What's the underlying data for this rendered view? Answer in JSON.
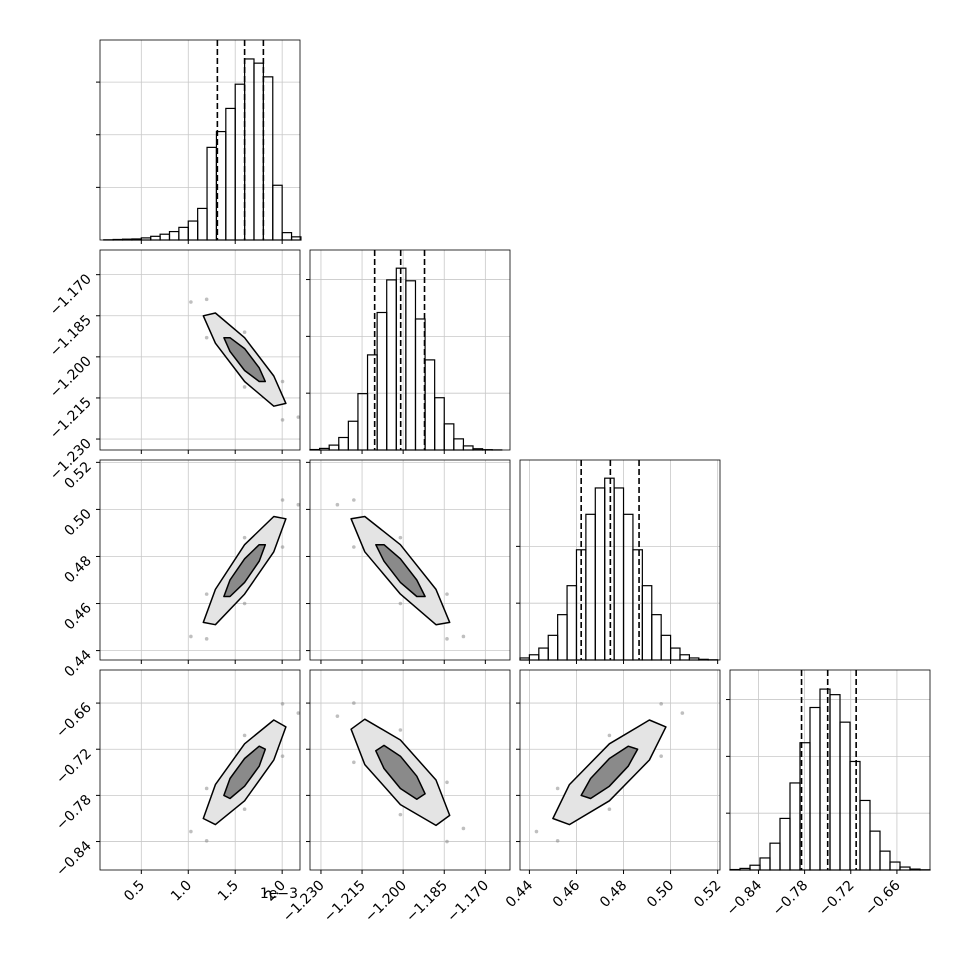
{
  "chart_data": {
    "type": "corner",
    "grid": true,
    "color": "#000000",
    "point_color": "#808080",
    "params": [
      {
        "lim": [
          0.06,
          2.19
        ],
        "ticks": [
          0.5,
          {
            "value": 1,
            "label": "1.0"
          },
          1.5,
          {
            "value": 2,
            "label": "2.0"
          }
        ],
        "offset_label": "1e−3",
        "quantiles": [
          1.31,
          1.6,
          1.8
        ],
        "hist": {
          "bins": [
            0.1,
            0.2,
            0.3,
            0.4,
            0.5,
            0.6,
            0.7,
            0.8,
            0.9,
            1.0,
            1.1,
            1.2,
            1.3,
            1.4,
            1.5,
            1.6,
            1.7,
            1.8,
            1.9,
            2.0,
            2.1,
            2.2
          ],
          "counts": [
            2,
            5,
            8,
            10,
            20,
            35,
            55,
            80,
            120,
            180,
            300,
            880,
            1030,
            1250,
            1480,
            1720,
            1680,
            1550,
            520,
            70,
            30
          ],
          "ylim": [
            0,
            1900
          ],
          "yticks": [
            500,
            1000,
            1500
          ]
        }
      },
      {
        "lim": [
          -1.234,
          -1.161
        ],
        "ticks": [
          {
            "value": -1.23,
            "label": "−1.230"
          },
          {
            "value": -1.215,
            "label": "−1.215"
          },
          {
            "value": -1.2,
            "label": "−1.200"
          },
          {
            "value": -1.185,
            "label": "−1.185"
          },
          {
            "value": -1.17,
            "label": "−1.170"
          }
        ],
        "quantiles": [
          -1.2104,
          -1.2009,
          -1.1922
        ],
        "hist": {
          "bins": [
            -1.234,
            -1.2305,
            -1.227,
            -1.2235,
            -1.22,
            -1.2165,
            -1.213,
            -1.2095,
            -1.206,
            -1.2025,
            -1.199,
            -1.1955,
            -1.192,
            -1.1885,
            -1.185,
            -1.1815,
            -1.178,
            -1.1745,
            -1.171,
            -1.1675,
            -1.164
          ],
          "counts": [
            4,
            14,
            43,
            110,
            253,
            496,
            837,
            1210,
            1497,
            1600,
            1489,
            1153,
            793,
            460,
            230,
            98,
            36,
            11,
            3,
            1
          ],
          "ylim": [
            0,
            1760
          ],
          "yticks": [
            500,
            1000,
            1500
          ]
        }
      },
      {
        "lim": [
          0.436,
          0.521
        ],
        "ticks": [
          0.44,
          0.46,
          0.48,
          {
            "value": 0.5,
            "label": "0.50"
          },
          0.52
        ],
        "quantiles": [
          0.462,
          0.4744,
          0.4866
        ],
        "hist": {
          "bins": [
            0.436,
            0.44,
            0.444,
            0.448,
            0.452,
            0.456,
            0.46,
            0.464,
            0.468,
            0.472,
            0.476,
            0.48,
            0.484,
            0.488,
            0.492,
            0.496,
            0.5,
            0.504,
            0.508,
            0.512,
            0.516,
            0.52
          ],
          "counts": [
            18,
            46,
            105,
            217,
            399,
            654,
            970,
            1282,
            1514,
            1600,
            1514,
            1282,
            970,
            654,
            399,
            217,
            105,
            46,
            18,
            6,
            2
          ],
          "ylim": [
            0,
            1760
          ],
          "yticks": [
            500,
            1000
          ]
        }
      },
      {
        "lim": [
          -0.877,
          -0.617
        ],
        "ticks": [
          {
            "value": -0.84,
            "label": "−0.84"
          },
          {
            "value": -0.78,
            "label": "−0.78"
          },
          {
            "value": -0.72,
            "label": "−0.72"
          },
          {
            "value": -0.66,
            "label": "−0.66"
          }
        ],
        "quantiles": [
          -0.784,
          -0.75,
          -0.713
        ],
        "hist": {
          "bins": [
            -0.877,
            -0.864,
            -0.851,
            -0.838,
            -0.825,
            -0.812,
            -0.799,
            -0.786,
            -0.773,
            -0.76,
            -0.747,
            -0.734,
            -0.721,
            -0.708,
            -0.695,
            -0.682,
            -0.669,
            -0.656,
            -0.643,
            -0.63,
            -0.617
          ],
          "counts": [
            4,
            14,
            42,
            106,
            236,
            454,
            766,
            1120,
            1430,
            1592,
            1543,
            1301,
            955,
            612,
            342,
            166,
            70,
            26,
            8,
            2
          ],
          "ylim": [
            0,
            1760
          ],
          "yticks": [
            500,
            1000,
            1500
          ]
        }
      }
    ],
    "pairs": [
      [
        {
          "points": {
            "x": [
              2.172,
              2.004,
              1.6,
              1.196,
              1.028,
              1.196,
              1.6,
              2.004
            ],
            "y": [
              -1.222,
              -1.209,
              -1.191,
              -1.179,
              -1.18,
              -1.193,
              -1.211,
              -1.223
            ]
          },
          "contours": [
            {
              "x": [
                2.04,
                1.911,
                1.6,
                1.289,
                1.16,
                1.289,
                1.6,
                1.911
              ],
              "y": [
                -1.217,
                -1.207,
                -1.193,
                -1.184,
                -1.185,
                -1.195,
                -1.209,
                -1.218
              ]
            },
            {
              "x": [
                1.82,
                1.756,
                1.6,
                1.444,
                1.38,
                1.444,
                1.6,
                1.756
              ],
              "y": [
                -1.209,
                -1.204,
                -1.197,
                -1.193,
                -1.193,
                -1.198,
                -1.205,
                -1.209
              ]
            }
          ]
        }
      ],
      [
        {
          "points": {
            "x": [
              2.172,
              2.004,
              1.6,
              1.196,
              1.028,
              1.196,
              1.6,
              2.004
            ],
            "y": [
              0.502,
              0.504,
              0.488,
              0.464,
              0.446,
              0.445,
              0.46,
              0.484
            ]
          },
          "contours": [
            {
              "x": [
                2.04,
                1.911,
                1.6,
                1.289,
                1.16,
                1.289,
                1.6,
                1.911
              ],
              "y": [
                0.496,
                0.497,
                0.485,
                0.466,
                0.452,
                0.451,
                0.464,
                0.482
              ]
            },
            {
              "x": [
                1.82,
                1.756,
                1.6,
                1.444,
                1.38,
                1.444,
                1.6,
                1.756
              ],
              "y": [
                0.485,
                0.485,
                0.479,
                0.47,
                0.463,
                0.463,
                0.469,
                0.478
              ]
            }
          ]
        },
        {
          "points": {
            "x": [
              -1.178,
              -1.184,
              -1.201,
              -1.218,
              -1.224,
              -1.218,
              -1.201,
              -1.184
            ],
            "y": [
              0.446,
              0.464,
              0.488,
              0.504,
              0.502,
              0.484,
              0.46,
              0.445
            ]
          },
          "contours": [
            {
              "x": [
                -1.183,
                -1.188,
                -1.201,
                -1.214,
                -1.219,
                -1.214,
                -1.201,
                -1.188
              ],
              "y": [
                0.452,
                0.466,
                0.485,
                0.497,
                0.496,
                0.482,
                0.464,
                0.451
              ]
            },
            {
              "x": [
                -1.192,
                -1.195,
                -1.201,
                -1.207,
                -1.21,
                -1.207,
                -1.201,
                -1.195
              ],
              "y": [
                0.463,
                0.47,
                0.479,
                0.485,
                0.485,
                0.478,
                0.469,
                0.463
              ]
            }
          ]
        }
      ],
      [
        {
          "points": {
            "x": [
              2.172,
              2.004,
              1.6,
              1.196,
              1.028,
              1.196,
              1.6,
              2.004
            ],
            "y": [
              -0.673,
              -0.661,
              -0.702,
              -0.771,
              -0.827,
              -0.839,
              -0.798,
              -0.729
            ]
          },
          "contours": [
            {
              "x": [
                2.04,
                1.911,
                1.6,
                1.289,
                1.16,
                1.289,
                1.6,
                1.911
              ],
              "y": [
                -0.691,
                -0.682,
                -0.713,
                -0.766,
                -0.81,
                -0.818,
                -0.787,
                -0.734
              ]
            },
            {
              "x": [
                1.82,
                1.756,
                1.6,
                1.444,
                1.38,
                1.444,
                1.6,
                1.756
              ],
              "y": [
                -0.72,
                -0.716,
                -0.732,
                -0.758,
                -0.78,
                -0.784,
                -0.768,
                -0.742
              ]
            }
          ]
        },
        {
          "points": {
            "x": [
              -1.178,
              -1.184,
              -1.201,
              -1.218,
              -1.224,
              -1.218,
              -1.201,
              -1.184
            ],
            "y": [
              -0.823,
              -0.763,
              -0.695,
              -0.66,
              -0.677,
              -0.737,
              -0.805,
              -0.84
            ]
          },
          "contours": [
            {
              "x": [
                -1.183,
                -1.188,
                -1.201,
                -1.214,
                -1.219,
                -1.214,
                -1.201,
                -1.188
              ],
              "y": [
                -0.806,
                -0.76,
                -0.708,
                -0.681,
                -0.694,
                -0.74,
                -0.792,
                -0.819
              ]
            },
            {
              "x": [
                -1.192,
                -1.195,
                -1.201,
                -1.207,
                -1.21,
                -1.207,
                -1.201,
                -1.195
              ],
              "y": [
                -0.778,
                -0.755,
                -0.729,
                -0.715,
                -0.722,
                -0.745,
                -0.771,
                -0.785
              ]
            }
          ]
        },
        {
          "points": {
            "x": [
              0.505,
              0.496,
              0.474,
              0.452,
              0.443,
              0.452,
              0.474,
              0.496
            ],
            "y": [
              -0.673,
              -0.661,
              -0.702,
              -0.771,
              -0.827,
              -0.839,
              -0.798,
              -0.729
            ]
          },
          "contours": [
            {
              "x": [
                0.498,
                0.491,
                0.474,
                0.457,
                0.45,
                0.457,
                0.474,
                0.491
              ],
              "y": [
                -0.691,
                -0.682,
                -0.713,
                -0.766,
                -0.81,
                -0.818,
                -0.787,
                -0.734
              ]
            },
            {
              "x": [
                0.486,
                0.482,
                0.474,
                0.466,
                0.462,
                0.466,
                0.474,
                0.482
              ],
              "y": [
                -0.72,
                -0.716,
                -0.732,
                -0.758,
                -0.78,
                -0.784,
                -0.768,
                -0.742
              ]
            }
          ]
        }
      ]
    ]
  }
}
